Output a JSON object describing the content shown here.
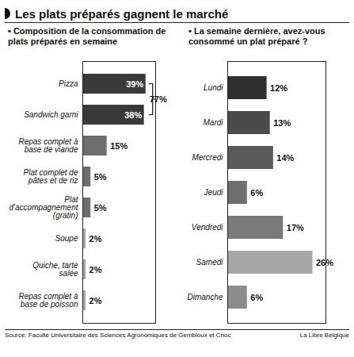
{
  "title": "Les plats préparés gagnent le marché",
  "source": "Source: Faculté Universitaire des Sciences Agronomiques de Gembloux et Crioc",
  "credit": "La Libre Belgique",
  "chart_data": [
    {
      "type": "bar",
      "orientation": "horizontal",
      "title": "• Composition de la consommation de plats préparés en semaine",
      "categories": [
        "Pizza",
        "Sandwich garni",
        "Repas complet à base de viande",
        "Plat complet de pâtes et de riz",
        "Plat d'accompagnement (gratin)",
        "Soupe",
        "Quiche, tarte salée",
        "Repas complet à base de poisson"
      ],
      "values": [
        39,
        38,
        15,
        5,
        5,
        2,
        2,
        2
      ],
      "value_labels": [
        "39%",
        "38%",
        "15%",
        "5%",
        "5%",
        "2%",
        "2%",
        "2%"
      ],
      "colors": [
        "#3a3a3a",
        "#3a3a3a",
        "#6e6e6e",
        "#6e6e6e",
        "#6e6e6e",
        "#a6a6a6",
        "#a6a6a6",
        "#a6a6a6"
      ],
      "data_labels": true,
      "xlim": [
        0,
        45
      ],
      "xticks": [],
      "tick_labels": "y",
      "annotations": [
        {
          "text": "77%",
          "categories": [
            "Pizza",
            "Sandwich garni"
          ]
        }
      ]
    },
    {
      "type": "bar",
      "orientation": "horizontal",
      "title": "• La semaine dernière, avez-vous consommé un plat préparé ?",
      "categories": [
        "Lundi",
        "Mardi",
        "Mercredi",
        "Jeudi",
        "Vendredi",
        "Samedi",
        "Dimanche"
      ],
      "values": [
        12,
        13,
        14,
        6,
        17,
        26,
        6
      ],
      "value_labels": [
        "12%",
        "13%",
        "14%",
        "6%",
        "17%",
        "26%",
        "6%"
      ],
      "colors": [
        "#2f2f2f",
        "#4a4a4a",
        "#5a5a5a",
        "#6e6e6e",
        "#7a7a7a",
        "#a6a6a6",
        "#8c8c8c"
      ],
      "data_labels": true,
      "xlim": [
        0,
        30
      ],
      "xticks": [],
      "tick_labels": "y"
    }
  ]
}
